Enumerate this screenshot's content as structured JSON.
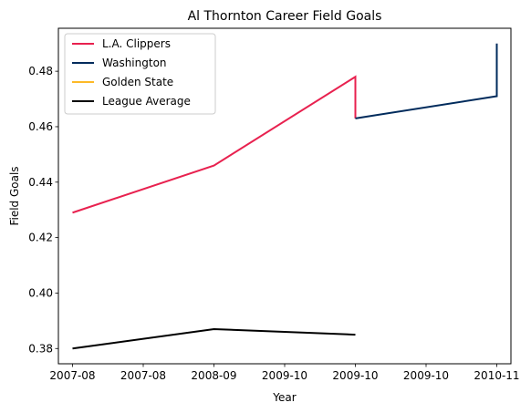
{
  "chart_data": {
    "type": "line",
    "title": "Al Thornton Career Field Goals",
    "xlabel": "Year",
    "ylabel": "Field Goals",
    "x_tick_labels": [
      "2007-08",
      "2007-08",
      "2008-09",
      "2009-10",
      "2009-10",
      "2009-10",
      "2010-11"
    ],
    "y_ticks": [
      0.38,
      0.4,
      0.42,
      0.44,
      0.46,
      0.48
    ],
    "y_tick_labels": [
      "0.38",
      "0.40",
      "0.42",
      "0.44",
      "0.46",
      "0.48"
    ],
    "xlim": [
      -0.1,
      3.1
    ],
    "ylim": [
      0.3745,
      0.4955
    ],
    "grid": false,
    "legend_position": "upper-left",
    "series": [
      {
        "name": "L.A. Clippers",
        "color": "#e8214f",
        "x": [
          0,
          1,
          2,
          2
        ],
        "y": [
          0.429,
          0.446,
          0.478,
          0.463
        ]
      },
      {
        "name": "Washington",
        "color": "#002b5c",
        "x": [
          2,
          3,
          3
        ],
        "y": [
          0.463,
          0.471,
          0.49
        ]
      },
      {
        "name": "Golden State",
        "color": "#fdb927",
        "x": [],
        "y": []
      },
      {
        "name": "League Average",
        "color": "#000000",
        "x": [
          0,
          1,
          2
        ],
        "y": [
          0.38,
          0.387,
          0.385
        ]
      }
    ]
  }
}
